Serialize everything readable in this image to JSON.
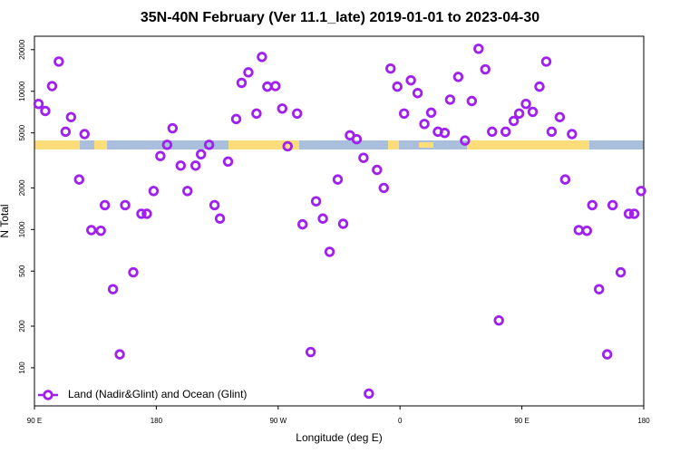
{
  "chart_data": {
    "type": "scatter",
    "title": "35N-40N February (Ver 11.1_late)   2019-01-01 to 2023-04-30",
    "x_label": "Longitude (deg E)",
    "y_label": "N Total",
    "log_y": true,
    "legend": "lower left",
    "xlim": [
      90,
      540
    ],
    "ylim": [
      53,
      25000
    ],
    "xticks": [
      {
        "value": 90,
        "label": "90 E"
      },
      {
        "value": 180,
        "label": "180"
      },
      {
        "value": 270,
        "label": "90 W"
      },
      {
        "value": 360,
        "label": "0"
      },
      {
        "value": 450,
        "label": "90 E"
      },
      {
        "value": 540,
        "label": "180"
      }
    ],
    "yticks": [
      100,
      200,
      500,
      1000,
      2000,
      5000,
      10000,
      20000
    ],
    "x": [
      93,
      98,
      103,
      108,
      113,
      117,
      123,
      127,
      132,
      139,
      142,
      148,
      153,
      157,
      163,
      169,
      173,
      178,
      183,
      188,
      192,
      198,
      203,
      209,
      213,
      219,
      223,
      227,
      233,
      239,
      243,
      248,
      254,
      258,
      262,
      268,
      273,
      277,
      284,
      288,
      294,
      298,
      303,
      308,
      314,
      318,
      323,
      328,
      333,
      337,
      343,
      348,
      353,
      358,
      363,
      368,
      373,
      378,
      383,
      388,
      393,
      397,
      403,
      408,
      413,
      418,
      423,
      428,
      433,
      438,
      444,
      448,
      453,
      458,
      463,
      468,
      472,
      478,
      482,
      487,
      492,
      498,
      502,
      507,
      513,
      517,
      523,
      529,
      533,
      538
    ],
    "series": [
      {
        "name": "Land (Nadir&Glint) and Ocean (Glint)",
        "color": "#a020f0",
        "values": [
          8100,
          7200,
          10900,
          16400,
          5100,
          6500,
          2300,
          4900,
          990,
          980,
          1500,
          370,
          125,
          1500,
          490,
          1300,
          1300,
          1900,
          3400,
          4100,
          5400,
          2900,
          1900,
          2900,
          3500,
          4100,
          1500,
          1200,
          3100,
          6300,
          11500,
          13700,
          6900,
          17700,
          10800,
          10900,
          7500,
          4000,
          6900,
          1090,
          130,
          1600,
          1200,
          690,
          2300,
          1100,
          4800,
          4500,
          3300,
          65,
          2700,
          2000,
          14600,
          10800,
          6900,
          12000,
          9700,
          5800,
          7000,
          5100,
          5000,
          8700,
          12700,
          4400,
          8500,
          20300,
          14400,
          5100,
          220,
          5100,
          6100,
          6900,
          8100,
          7100,
          10800,
          16400,
          5100,
          6500,
          2300,
          4900,
          990,
          980,
          1500,
          370,
          125,
          1500,
          490,
          1300,
          1300,
          1900
        ]
      }
    ]
  }
}
